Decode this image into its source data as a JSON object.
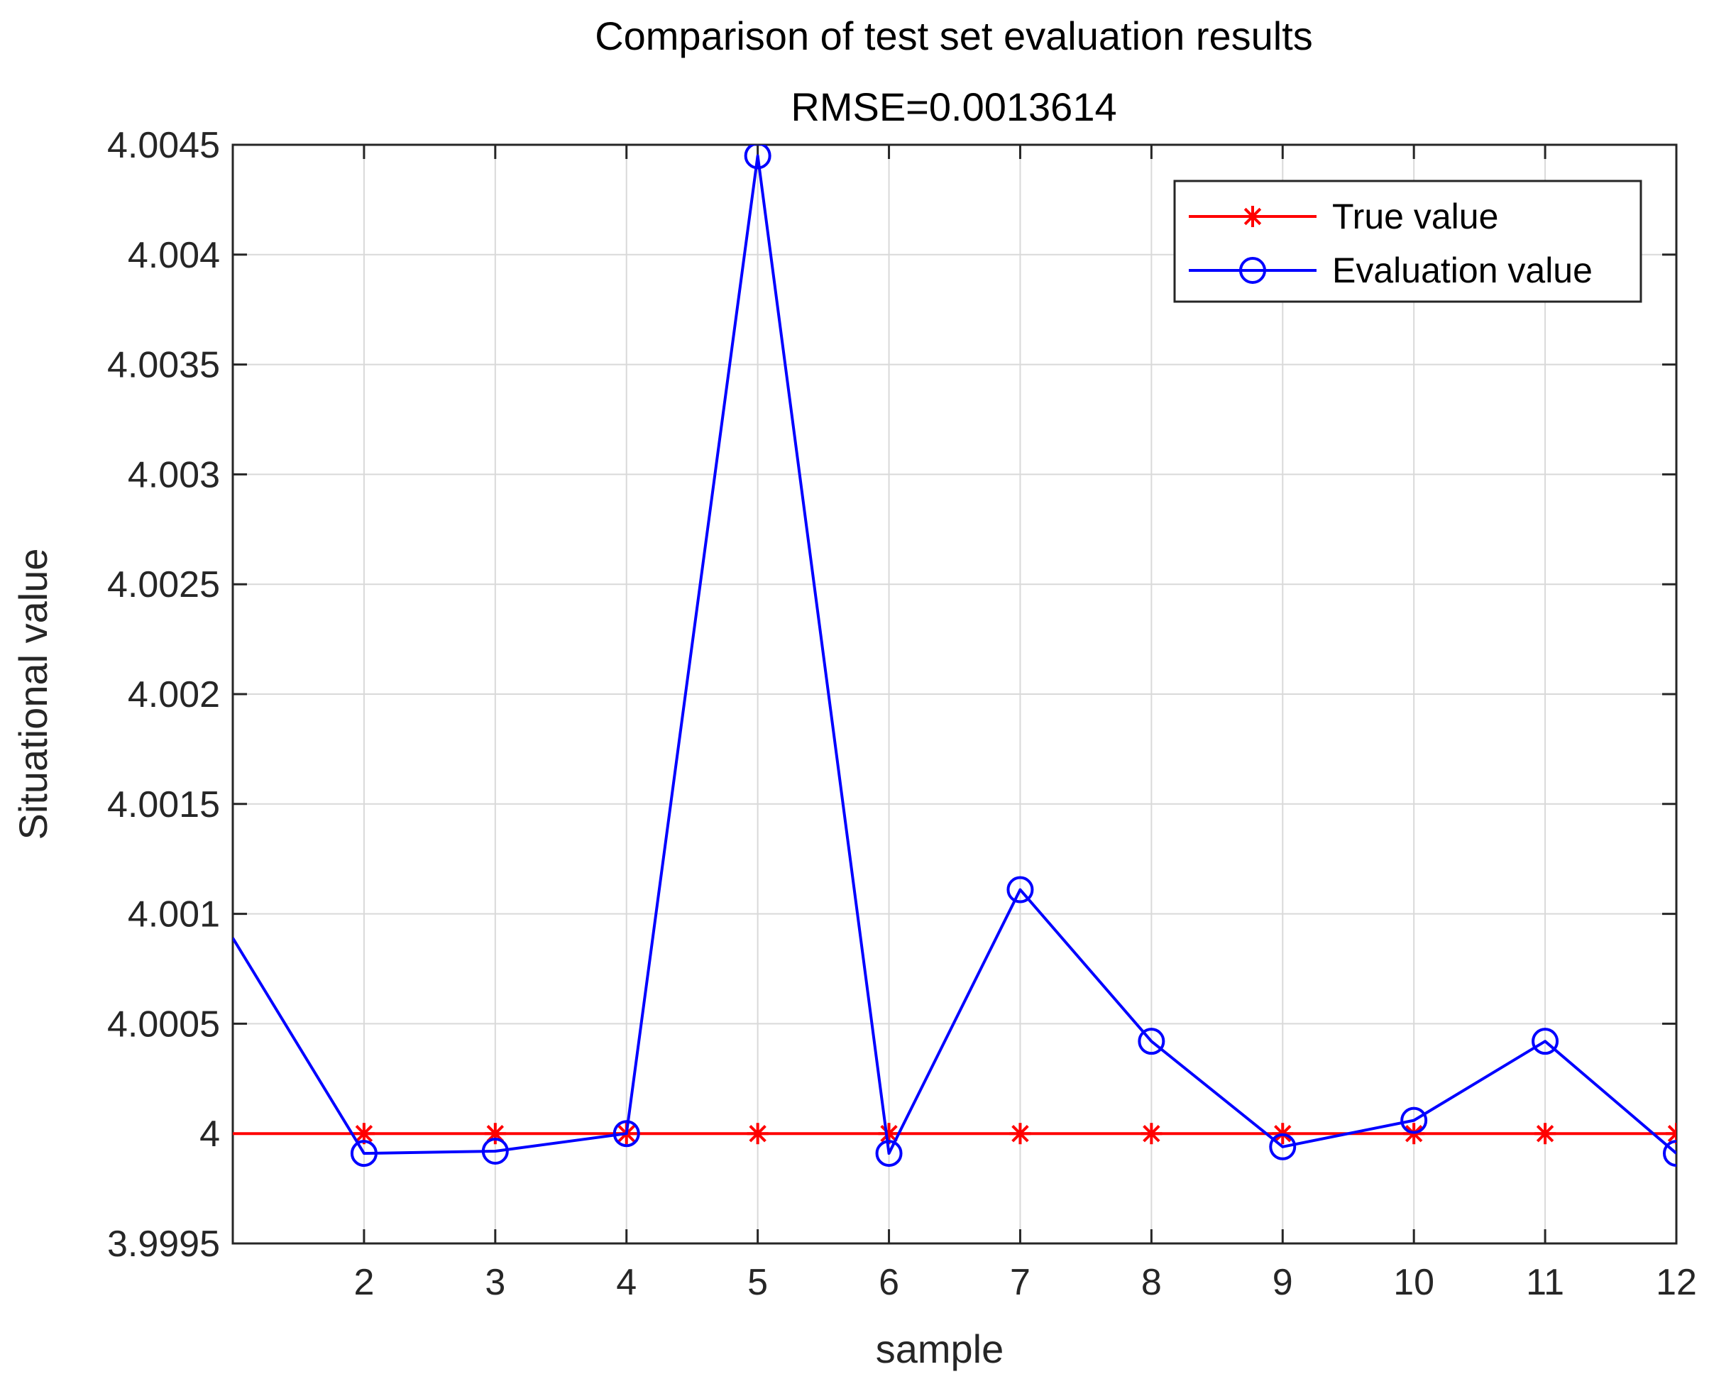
{
  "chart_data": {
    "type": "line",
    "title": "Comparison of test set evaluation results",
    "subtitle": "RMSE=0.0013614",
    "xlabel": "sample",
    "ylabel": "Situational value",
    "xlim": [
      1,
      12
    ],
    "ylim": [
      3.9995,
      4.0045
    ],
    "x": [
      1,
      2,
      3,
      4,
      5,
      6,
      7,
      8,
      9,
      10,
      11,
      12
    ],
    "xticks": [
      2,
      3,
      4,
      5,
      6,
      7,
      8,
      9,
      10,
      11,
      12
    ],
    "xtick_labels": [
      "2",
      "3",
      "4",
      "5",
      "6",
      "7",
      "8",
      "9",
      "10",
      "11",
      "12"
    ],
    "yticks": [
      3.9995,
      4.0,
      4.0005,
      4.001,
      4.0015,
      4.002,
      4.0025,
      4.003,
      4.0035,
      4.004,
      4.0045
    ],
    "ytick_labels": [
      "3.9995",
      "4",
      "4.0005",
      "4.001",
      "4.0015",
      "4.002",
      "4.0025",
      "4.003",
      "4.0035",
      "4.004",
      "4.0045"
    ],
    "grid": true,
    "legend_position": "top-right",
    "series": [
      {
        "name": "True value",
        "color": "#ff0000",
        "marker": "asterisk",
        "values": [
          4.0,
          4.0,
          4.0,
          4.0,
          4.0,
          4.0,
          4.0,
          4.0,
          4.0,
          4.0,
          4.0,
          4.0
        ]
      },
      {
        "name": "Evaluation value",
        "color": "#0000ff",
        "marker": "circle",
        "values": [
          4.00089,
          3.99991,
          3.99992,
          4.0,
          4.00445,
          3.99991,
          4.00111,
          4.00042,
          3.99994,
          4.00006,
          4.00042,
          3.99991
        ]
      }
    ]
  }
}
